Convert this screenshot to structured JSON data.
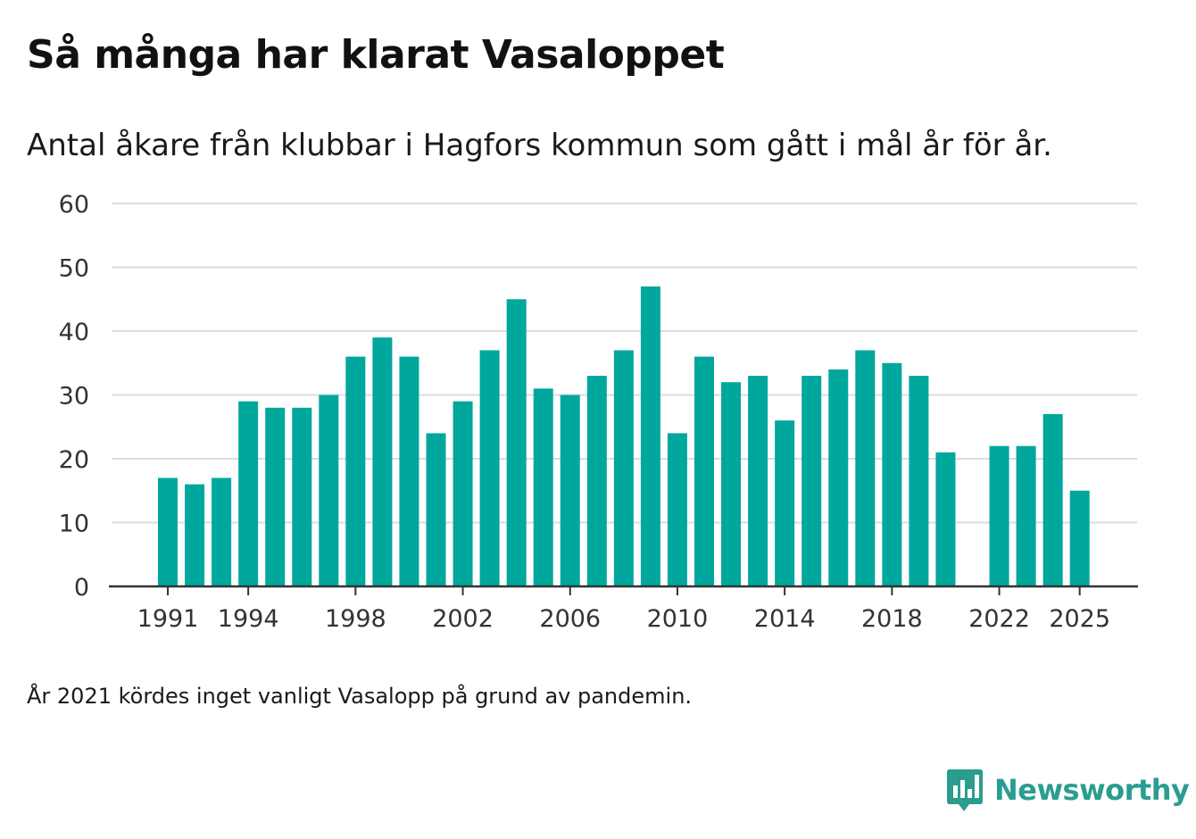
{
  "colors": {
    "bar": "#00a79d",
    "grid": "#dcdcdc",
    "axis": "#333333",
    "brand": "#2a9d8f"
  },
  "chart_data": {
    "type": "bar",
    "title": "Så många har klarat Vasaloppet",
    "subtitle": "Antal åkare från klubbar i Hagfors kommun som gått i mål år för år.",
    "xlabel": "",
    "ylabel": "",
    "ylim": [
      0,
      60
    ],
    "yticks": [
      0,
      10,
      20,
      30,
      40,
      50,
      60
    ],
    "xticks": [
      1991,
      1994,
      1998,
      2002,
      2006,
      2010,
      2014,
      2018,
      2022,
      2025
    ],
    "grid": true,
    "categories": [
      1991,
      1992,
      1993,
      1994,
      1995,
      1996,
      1997,
      1998,
      1999,
      2000,
      2001,
      2002,
      2003,
      2004,
      2005,
      2006,
      2007,
      2008,
      2009,
      2010,
      2011,
      2012,
      2013,
      2014,
      2015,
      2016,
      2017,
      2018,
      2019,
      2020,
      2021,
      2022,
      2023,
      2024,
      2025
    ],
    "values": [
      17,
      16,
      17,
      29,
      28,
      28,
      30,
      36,
      39,
      36,
      24,
      29,
      37,
      45,
      31,
      30,
      33,
      37,
      47,
      24,
      36,
      32,
      33,
      26,
      33,
      34,
      37,
      35,
      33,
      21,
      null,
      22,
      22,
      27,
      15
    ]
  },
  "footnote": "År 2021 kördes inget vanligt Vasalopp på grund av pandemin.",
  "brand": {
    "name": "Newsworthy",
    "icon": "newsworthy-logo-icon"
  }
}
